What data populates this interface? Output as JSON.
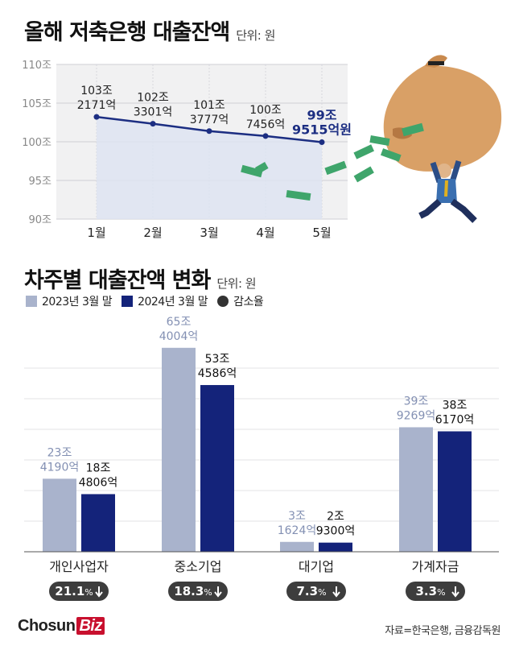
{
  "title1": "올해 저축은행 대출잔액",
  "unit1": "단위: 원",
  "title2": "차주별 대출잔액 변화",
  "unit2": "단위: 원",
  "legend": {
    "s2023": "2023년 3월 말",
    "s2024": "2024년 3월 말",
    "decline": "감소율"
  },
  "colors": {
    "s2023": "#a9b3cc",
    "s2024": "#14237a",
    "line": "#1c2e82",
    "badge": "#3d3d3d"
  },
  "chart_data": [
    {
      "type": "line",
      "title": "올해 저축은행 대출잔액",
      "unit": "단위: 원",
      "categories": [
        "1월",
        "2월",
        "3월",
        "4월",
        "5월"
      ],
      "values": [
        103.2171,
        102.3301,
        101.3777,
        100.7456,
        99.9515
      ],
      "data_labels": [
        [
          "103조",
          "2171억"
        ],
        [
          "102조",
          "3301억"
        ],
        [
          "101조",
          "3777억"
        ],
        [
          "100조",
          "7456억"
        ],
        [
          "99조",
          "9515억원"
        ]
      ],
      "yticks": [
        110,
        105,
        100,
        95,
        90
      ],
      "ytick_labels": [
        "110조",
        "105조",
        "100조",
        "95조",
        "90조"
      ],
      "ylim": [
        90,
        110
      ]
    },
    {
      "type": "bar",
      "title": "차주별 대출잔액 변화",
      "unit": "단위: 원",
      "categories": [
        "개인사업자",
        "중소기업",
        "대기업",
        "가계자금"
      ],
      "series": [
        {
          "name": "2023년 3월 말",
          "values": [
            23.419,
            65.4004,
            3.1624,
            39.9269
          ],
          "labels": [
            [
              "23조",
              "4190억"
            ],
            [
              "65조",
              "4004억"
            ],
            [
              "3조",
              "1624억"
            ],
            [
              "39조",
              "9269억"
            ]
          ]
        },
        {
          "name": "2024년 3월 말",
          "values": [
            18.4806,
            53.4586,
            2.93,
            38.617
          ],
          "labels": [
            [
              "18조",
              "4806억"
            ],
            [
              "53조",
              "4586억"
            ],
            [
              "2조",
              "9300억"
            ],
            [
              "38조",
              "6170억"
            ]
          ]
        }
      ],
      "decline_rates": [
        {
          "value": "21.1",
          "unit": "%"
        },
        {
          "value": "18.3",
          "unit": "%"
        },
        {
          "value": "7.3",
          "unit": "%"
        },
        {
          "value": "3.3",
          "unit": "%"
        }
      ],
      "ylim": [
        0,
        70
      ]
    }
  ],
  "footer": {
    "logo_main": "Chosun",
    "logo_biz": "Biz",
    "source": "자료=한국은행, 금융감독원"
  }
}
